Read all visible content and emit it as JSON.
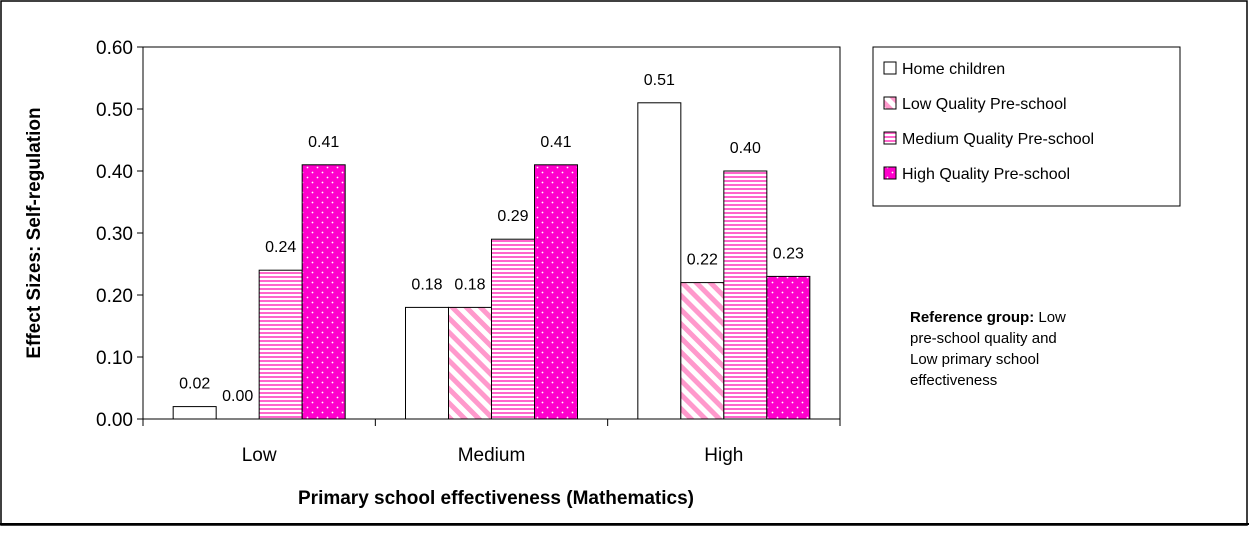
{
  "chart_data": {
    "type": "bar",
    "title": "",
    "xlabel": "Primary school effectiveness (Mathematics)",
    "ylabel": "Effect Sizes: Self-regulation",
    "categories": [
      "Low",
      "Medium",
      "High"
    ],
    "ylim": [
      0,
      0.6
    ],
    "yticks": [
      "0.00",
      "0.10",
      "0.20",
      "0.30",
      "0.40",
      "0.50",
      "0.60"
    ],
    "grid": false,
    "legend_position": "top-right",
    "series": [
      {
        "name": "Home children",
        "values": [
          0.02,
          0.18,
          0.51
        ],
        "labels": [
          "0.02",
          "0.18",
          "0.51"
        ],
        "color": "#ffffff",
        "pattern": "none"
      },
      {
        "name": "Low Quality Pre-school",
        "values": [
          0.0,
          0.18,
          0.22
        ],
        "labels": [
          "0.00",
          "0.18",
          "0.22"
        ],
        "color": "#ff99cc",
        "pattern": "diagonal"
      },
      {
        "name": "Medium Quality Pre-school",
        "values": [
          0.24,
          0.29,
          0.4
        ],
        "labels": [
          "0.24",
          "0.29",
          "0.40"
        ],
        "color": "#ff66cc",
        "pattern": "horizontal"
      },
      {
        "name": "High Quality Pre-school",
        "values": [
          0.41,
          0.41,
          0.23
        ],
        "labels": [
          "0.41",
          "0.41",
          "0.23"
        ],
        "color": "#ff00cc",
        "pattern": "dots"
      }
    ],
    "annotation": {
      "bold": "Reference group:",
      "lines": [
        " Low",
        "pre-school quality and",
        "Low primary school",
        "effectiveness"
      ]
    }
  }
}
